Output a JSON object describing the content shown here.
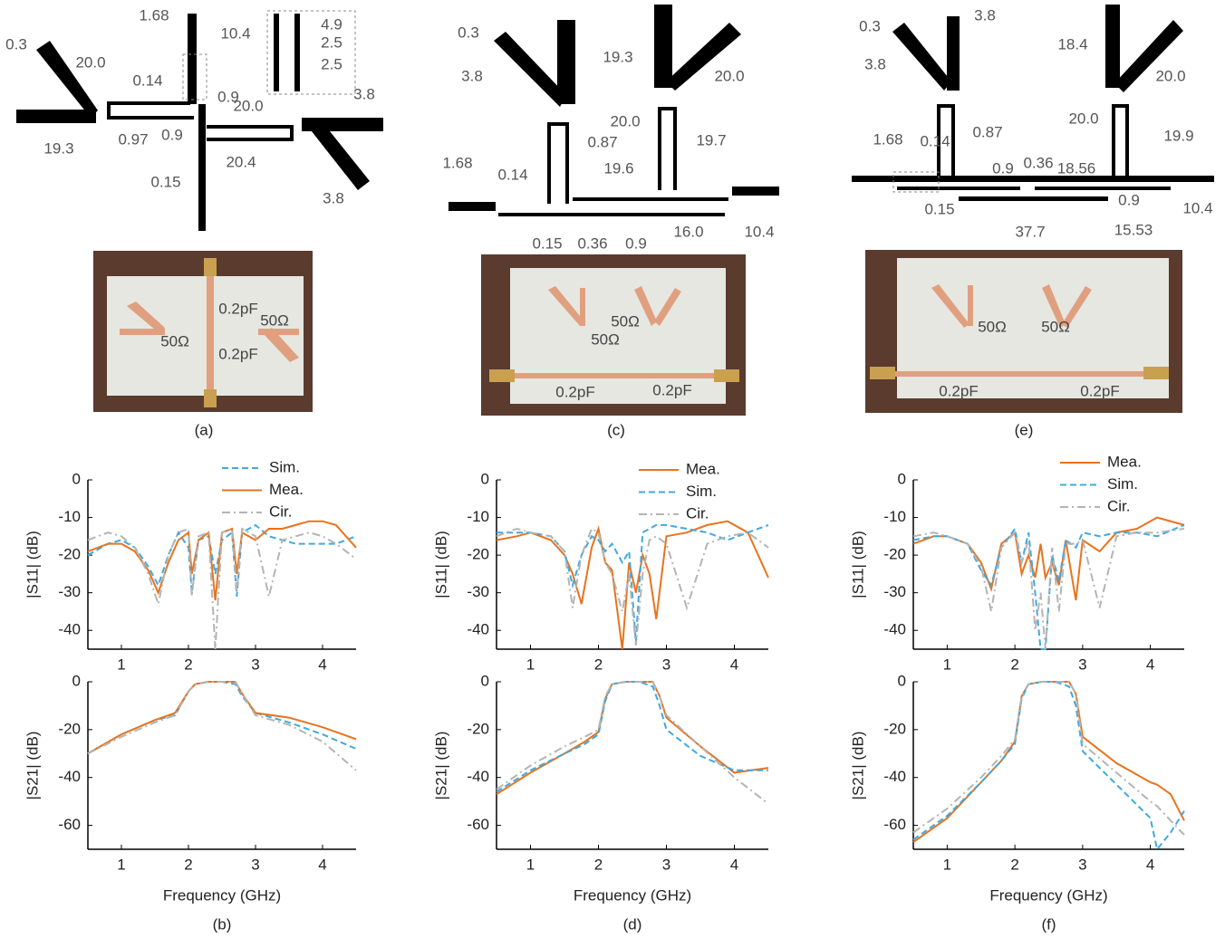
{
  "panels": [
    {
      "caption": "(a)",
      "dims": [
        "0.3",
        "20.0",
        "1.68",
        "10.4",
        "4.9",
        "2.5",
        "2.5",
        "0.14",
        "0.9",
        "3.8",
        "0.97",
        "0.9",
        "20.0",
        "19.3",
        "20.4",
        "0.15",
        "3.8"
      ],
      "photo_labels": [
        "0.2pF",
        "50Ω",
        "50Ω",
        "0.2pF"
      ]
    },
    {
      "caption": "(c)",
      "dims": [
        "0.3",
        "3.8",
        "19.3",
        "20.0",
        "0.87",
        "20.0",
        "19.7",
        "1.68",
        "0.14",
        "19.6",
        "0.15",
        "0.36",
        "0.9",
        "16.0",
        "10.4"
      ],
      "photo_labels": [
        "50Ω",
        "50Ω",
        "0.2pF",
        "0.2pF"
      ]
    },
    {
      "caption": "(e)",
      "dims": [
        "0.3",
        "3.8",
        "3.8",
        "18.4",
        "20.0",
        "1.68",
        "0.14",
        "0.87",
        "0.9",
        "0.36",
        "20.0",
        "19.9",
        "18.56",
        "0.15",
        "0.9",
        "37.7",
        "15.53",
        "10.4"
      ],
      "photo_labels": [
        "50Ω",
        "50Ω",
        "0.2pF",
        "0.2pF"
      ]
    }
  ],
  "chart_data": [
    {
      "type": "line",
      "ylabel": "|S11| (dB)",
      "xlim": [
        0.5,
        4.5
      ],
      "ylim": [
        -45,
        0
      ],
      "xticks": [
        1,
        2,
        3,
        4
      ],
      "yticks": [
        0,
        -10,
        -20,
        -30,
        -40
      ],
      "x": [
        0.5,
        0.8,
        1.0,
        1.2,
        1.4,
        1.55,
        1.7,
        1.85,
        2.0,
        2.05,
        2.15,
        2.3,
        2.4,
        2.5,
        2.65,
        2.72,
        2.8,
        3.0,
        3.2,
        3.4,
        3.6,
        3.8,
        4.0,
        4.2,
        4.5
      ],
      "series": [
        {
          "name": "Sim.",
          "color": "#3fa9e0",
          "dash": "dashed",
          "values": [
            -20,
            -17,
            -16,
            -18,
            -23,
            -28,
            -20,
            -14,
            -18,
            -30,
            -16,
            -15,
            -25,
            -16,
            -14,
            -31,
            -14,
            -12,
            -15,
            -16,
            -17,
            -17,
            -17,
            -17,
            -15
          ]
        },
        {
          "name": "Mea.",
          "color": "#e8731e",
          "dash": "solid",
          "values": [
            -19,
            -17,
            -17,
            -19,
            -24,
            -30,
            -22,
            -16,
            -14,
            -25,
            -16,
            -14,
            -32,
            -14,
            -13,
            -25,
            -14,
            -16,
            -13,
            -13,
            -12,
            -11,
            -11,
            -12,
            -18
          ]
        },
        {
          "name": "Cir.",
          "color": "#b4b4b4",
          "dash": "dashdot",
          "values": [
            -16,
            -14,
            -15,
            -18,
            -25,
            -33,
            -20,
            -14,
            -13,
            -31,
            -15,
            -14,
            -45,
            -14,
            -13,
            -30,
            -13,
            -15,
            -31,
            -16,
            -15,
            -14,
            -15,
            -17,
            -21
          ]
        }
      ]
    },
    {
      "type": "line",
      "ylabel": "|S21| (dB)",
      "xlabel": "Frequency (GHz)",
      "caption": "(b)",
      "xlim": [
        0.5,
        4.5
      ],
      "ylim": [
        -70,
        0
      ],
      "xticks": [
        1,
        2,
        3,
        4
      ],
      "yticks": [
        0,
        -20,
        -40,
        -60
      ],
      "x": [
        0.5,
        1.0,
        1.5,
        1.8,
        2.0,
        2.1,
        2.3,
        2.5,
        2.7,
        2.8,
        3.0,
        3.5,
        4.0,
        4.5
      ],
      "series": [
        {
          "color": "#3fa9e0",
          "dash": "dashed",
          "values": [
            -30,
            -22,
            -16,
            -14,
            -4,
            -1,
            0,
            0,
            -1,
            -6,
            -13,
            -17,
            -22,
            -28
          ]
        },
        {
          "color": "#e8731e",
          "dash": "solid",
          "values": [
            -30,
            -22,
            -16,
            -13,
            -4,
            -1,
            0,
            0,
            0,
            -5,
            -13,
            -15,
            -19,
            -24
          ]
        },
        {
          "color": "#b4b4b4",
          "dash": "dashdot",
          "values": [
            -30,
            -23,
            -17,
            -14,
            -4,
            -1,
            0,
            0,
            0,
            -5,
            -14,
            -18,
            -25,
            -37
          ]
        }
      ]
    },
    {
      "type": "line",
      "ylabel": "|S11| (dB)",
      "xlim": [
        0.5,
        4.5
      ],
      "ylim": [
        -45,
        0
      ],
      "xticks": [
        1,
        2,
        3,
        4
      ],
      "yticks": [
        0,
        -10,
        -20,
        -30,
        -40
      ],
      "x": [
        0.5,
        0.8,
        1.0,
        1.3,
        1.5,
        1.62,
        1.75,
        1.9,
        2.0,
        2.1,
        2.2,
        2.35,
        2.45,
        2.55,
        2.65,
        2.75,
        2.85,
        3.0,
        3.3,
        3.6,
        3.9,
        4.2,
        4.5
      ],
      "series": [
        {
          "name": "Mea.",
          "color": "#e8731e",
          "dash": "solid",
          "values": [
            -16,
            -15,
            -14,
            -16,
            -20,
            -25,
            -33,
            -18,
            -13,
            -22,
            -24,
            -45,
            -22,
            -30,
            -20,
            -25,
            -37,
            -15,
            -14,
            -12,
            -11,
            -14,
            -26
          ]
        },
        {
          "name": "Sim.",
          "color": "#3fa9e0",
          "dash": "dashed",
          "values": [
            -14,
            -14,
            -14,
            -15,
            -19,
            -28,
            -20,
            -15,
            -16,
            -19,
            -17,
            -22,
            -19,
            -43,
            -14,
            -13,
            -12,
            -12,
            -13,
            -14,
            -16,
            -14,
            -12
          ]
        },
        {
          "name": "Cir.",
          "color": "#b4b4b4",
          "dash": "dashdot",
          "values": [
            -15,
            -13,
            -14,
            -15,
            -19,
            -34,
            -20,
            -13,
            -14,
            -22,
            -25,
            -35,
            -25,
            -44,
            -25,
            -16,
            -15,
            -17,
            -34,
            -17,
            -15,
            -14,
            -18
          ]
        }
      ]
    },
    {
      "type": "line",
      "ylabel": "|S21| (dB)",
      "xlabel": "Frequency (GHz)",
      "caption": "(d)",
      "xlim": [
        0.5,
        4.5
      ],
      "ylim": [
        -70,
        0
      ],
      "xticks": [
        1,
        2,
        3,
        4
      ],
      "yticks": [
        0,
        -20,
        -40,
        -60
      ],
      "x": [
        0.5,
        1.0,
        1.5,
        1.8,
        2.0,
        2.1,
        2.2,
        2.4,
        2.6,
        2.8,
        2.9,
        3.0,
        3.5,
        4.0,
        4.5
      ],
      "series": [
        {
          "color": "#e8731e",
          "dash": "solid",
          "values": [
            -47,
            -38,
            -30,
            -25,
            -21,
            -7,
            -1,
            0,
            0,
            0,
            -6,
            -15,
            -27,
            -38,
            -36
          ]
        },
        {
          "color": "#3fa9e0",
          "dash": "dashed",
          "values": [
            -46,
            -37,
            -30,
            -26,
            -22,
            -8,
            -1,
            0,
            0,
            -2,
            -10,
            -20,
            -31,
            -37,
            -37
          ]
        },
        {
          "color": "#b4b4b4",
          "dash": "dashdot",
          "values": [
            -45,
            -35,
            -27,
            -23,
            -20,
            -6,
            -1,
            0,
            0,
            0,
            -6,
            -14,
            -27,
            -40,
            -51
          ]
        }
      ]
    },
    {
      "type": "line",
      "ylabel": "|S11| (dB)",
      "xlim": [
        0.5,
        4.5
      ],
      "ylim": [
        -45,
        0
      ],
      "xticks": [
        1,
        2,
        3,
        4
      ],
      "yticks": [
        0,
        -10,
        -20,
        -30,
        -40
      ],
      "x": [
        0.5,
        0.8,
        1.0,
        1.3,
        1.5,
        1.65,
        1.8,
        2.0,
        2.1,
        2.2,
        2.3,
        2.38,
        2.45,
        2.55,
        2.65,
        2.75,
        2.9,
        3.0,
        3.25,
        3.5,
        3.8,
        4.1,
        4.5
      ],
      "series": [
        {
          "name": "Mea.",
          "color": "#e8731e",
          "dash": "solid",
          "values": [
            -17,
            -15,
            -15,
            -17,
            -22,
            -29,
            -17,
            -14,
            -25,
            -20,
            -26,
            -17,
            -26,
            -22,
            -28,
            -16,
            -32,
            -16,
            -19,
            -14,
            -13,
            -10,
            -12
          ]
        },
        {
          "name": "Sim.",
          "color": "#3fa9e0",
          "dash": "dashed",
          "values": [
            -16,
            -15,
            -15,
            -17,
            -24,
            -28,
            -18,
            -13,
            -22,
            -14,
            -30,
            -45,
            -45,
            -20,
            -27,
            -16,
            -18,
            -14,
            -15,
            -14,
            -14,
            -15,
            -12
          ]
        },
        {
          "name": "Cir.",
          "color": "#b4b4b4",
          "dash": "dashdot",
          "values": [
            -15,
            -14,
            -15,
            -17,
            -23,
            -35,
            -18,
            -14,
            -22,
            -16,
            -40,
            -30,
            -45,
            -18,
            -35,
            -17,
            -17,
            -16,
            -34,
            -15,
            -14,
            -14,
            -13
          ]
        }
      ]
    },
    {
      "type": "line",
      "ylabel": "|S21| (dB)",
      "xlabel": "Frequency (GHz)",
      "caption": "(f)",
      "xlim": [
        0.5,
        4.5
      ],
      "ylim": [
        -70,
        0
      ],
      "xticks": [
        1,
        2,
        3,
        4
      ],
      "yticks": [
        0,
        -20,
        -40,
        -60
      ],
      "x": [
        0.5,
        1.0,
        1.5,
        1.8,
        2.0,
        2.1,
        2.2,
        2.4,
        2.6,
        2.8,
        2.9,
        3.0,
        3.5,
        4.0,
        4.1,
        4.3,
        4.5
      ],
      "series": [
        {
          "color": "#e8731e",
          "dash": "solid",
          "values": [
            -67,
            -57,
            -42,
            -33,
            -25,
            -6,
            -1,
            0,
            0,
            0,
            -5,
            -23,
            -34,
            -42,
            -43,
            -47,
            -58
          ]
        },
        {
          "color": "#3fa9e0",
          "dash": "dashed",
          "values": [
            -66,
            -56,
            -42,
            -33,
            -26,
            -7,
            -1,
            0,
            0,
            -2,
            -10,
            -29,
            -43,
            -57,
            -70,
            -63,
            -54
          ]
        },
        {
          "color": "#b4b4b4",
          "dash": "dashdot",
          "values": [
            -63,
            -53,
            -40,
            -31,
            -24,
            -6,
            -1,
            0,
            0,
            0,
            -5,
            -26,
            -38,
            -50,
            -52,
            -58,
            -64
          ]
        }
      ]
    }
  ]
}
